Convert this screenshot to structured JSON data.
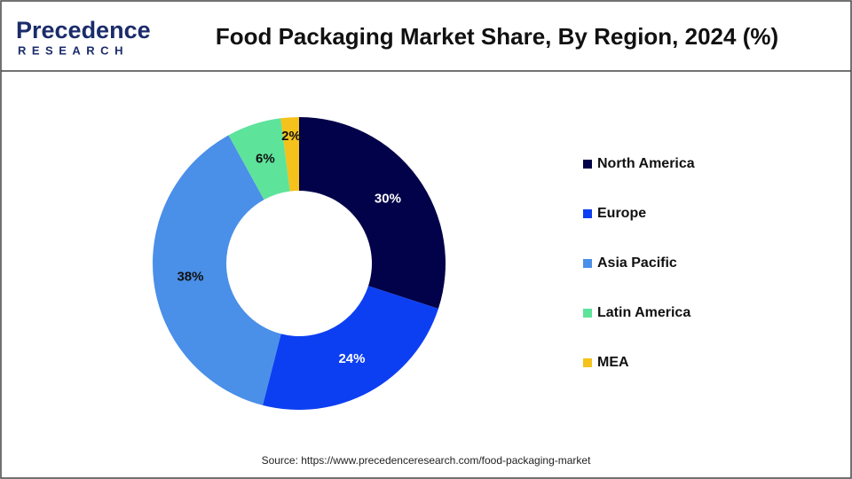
{
  "logo_text": "Precedence",
  "logo_subtext": "RESEARCH",
  "source": "Source: https://www.precedenceresearch.com/food-packaging-market",
  "chart_data": {
    "type": "donut",
    "title": "Food Packaging Market Share, By Region, 2024 (%)",
    "categories": [
      "North America",
      "Europe",
      "Asia Pacific",
      "Latin America",
      "MEA"
    ],
    "values": [
      30,
      24,
      38,
      6,
      2
    ],
    "value_labels": [
      "30%",
      "24%",
      "38%",
      "6%",
      "2%"
    ],
    "colors": [
      "#02024a",
      "#0d3ff2",
      "#4a8fe8",
      "#5ee39b",
      "#f5c21b"
    ],
    "legend": "right"
  }
}
